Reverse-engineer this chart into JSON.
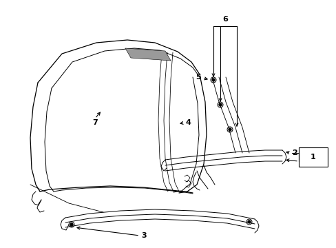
{
  "background_color": "#ffffff",
  "line_color": "#000000",
  "figsize": [
    4.89,
    3.6
  ],
  "dpi": 100,
  "lw": 0.7,
  "callout_fs": 8
}
